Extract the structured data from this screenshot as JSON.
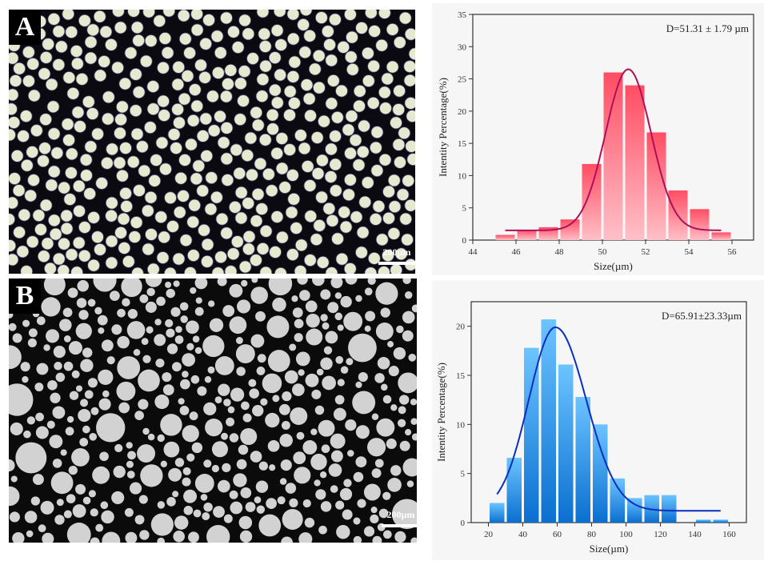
{
  "panels": [
    {
      "label": "A",
      "scale_bar": "200µm",
      "image": "monodisperse microspheres, dark field"
    },
    {
      "label": "B",
      "scale_bar": "200µm",
      "image": "polydisperse microspheres"
    }
  ],
  "chart_data": [
    {
      "type": "bar",
      "title": "",
      "annotation": "D=51.31 ± 1.79 µm",
      "xlabel": "Size(µm)",
      "ylabel": "Intentity Percentage(%)",
      "xlim": [
        44,
        57
      ],
      "ylim": [
        0,
        35
      ],
      "xticks": [
        44,
        46,
        48,
        50,
        52,
        54,
        56
      ],
      "yticks": [
        0,
        5,
        10,
        15,
        20,
        25,
        30,
        35
      ],
      "bin_width": 1,
      "x": [
        45.5,
        46.5,
        47.5,
        48.5,
        49.5,
        50.5,
        51.5,
        52.5,
        53.5,
        54.5,
        55.5
      ],
      "values": [
        0.8,
        1.6,
        2.0,
        3.2,
        11.8,
        26.0,
        24.0,
        16.7,
        7.7,
        4.8,
        1.2
      ],
      "fit": {
        "type": "gaussian",
        "center": 51.2,
        "peak": 26.5,
        "sigma": 1.05,
        "baseline": 1.5,
        "range": [
          45.5,
          55.5
        ]
      },
      "bar_color": "#ff4d63",
      "bar_color_light": "#ffc0c8",
      "fit_color": "#b0105a"
    },
    {
      "type": "bar",
      "title": "",
      "annotation": "D=65.91±23.33µm",
      "xlabel": "Size(µm)",
      "ylabel": "Intentity Percentage(%)",
      "xlim": [
        10,
        170
      ],
      "ylim": [
        0,
        22.5
      ],
      "xticks": [
        20,
        40,
        60,
        80,
        100,
        120,
        140,
        160
      ],
      "yticks": [
        0,
        5,
        10,
        15,
        20
      ],
      "bin_width": 10,
      "x": [
        25,
        35,
        45,
        55,
        65,
        75,
        85,
        95,
        105,
        115,
        125,
        135,
        145,
        155
      ],
      "values": [
        2.0,
        6.6,
        17.8,
        20.7,
        16.1,
        12.8,
        10.0,
        4.5,
        2.5,
        2.8,
        2.8,
        0,
        0.3,
        0.3
      ],
      "fit": {
        "type": "gaussian",
        "center": 59,
        "peak": 19.9,
        "sigma": 15.5,
        "baseline": 1.2,
        "range": [
          25,
          155
        ]
      },
      "bar_color": "#0a6fd0",
      "bar_color_light": "#6cc4ff",
      "fit_color": "#0a2fc0"
    }
  ]
}
